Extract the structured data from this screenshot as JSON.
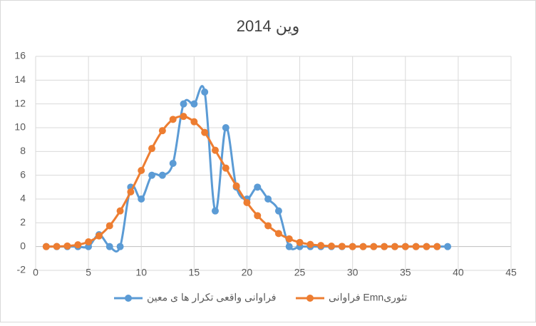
{
  "chart_data": {
    "type": "scatter",
    "title": "وین 2014",
    "x": [
      1,
      2,
      3,
      4,
      5,
      6,
      7,
      8,
      9,
      10,
      11,
      12,
      13,
      14,
      15,
      16,
      17,
      18,
      19,
      20,
      21,
      22,
      23,
      24,
      25,
      26,
      27,
      28,
      29,
      30,
      31,
      32,
      33,
      34,
      35,
      36,
      37,
      38,
      39
    ],
    "series": [
      {
        "name": "فراوانی واقعی تکرار ها ی معین",
        "color": "#5b9bd5",
        "values": [
          0,
          0,
          0,
          0,
          0,
          1,
          0,
          0,
          5,
          4,
          6,
          6,
          7,
          12,
          12,
          13,
          3,
          10,
          5,
          4,
          5,
          4,
          3,
          0,
          0,
          0,
          0,
          0,
          0,
          0,
          0,
          0,
          0,
          0,
          0,
          0,
          0,
          0,
          0
        ]
      },
      {
        "name": "فراوانی Emnتئوری",
        "color": "#ed7d31",
        "values": [
          0,
          0.01,
          0.05,
          0.15,
          0.4,
          0.9,
          1.75,
          3,
          4.6,
          6.4,
          8.25,
          9.75,
          10.7,
          10.95,
          10.5,
          9.6,
          8.1,
          6.6,
          5.1,
          3.7,
          2.6,
          1.75,
          1.1,
          0.65,
          0.35,
          0.18,
          0.09,
          0.04,
          0.02,
          0,
          0,
          0,
          0,
          0,
          0,
          0,
          0,
          0,
          null
        ]
      }
    ],
    "xlim": [
      0,
      45
    ],
    "xticks": [
      0,
      5,
      10,
      15,
      20,
      25,
      30,
      35,
      40,
      45
    ],
    "ylim": [
      -2,
      16
    ],
    "yticks": [
      -2,
      0,
      2,
      4,
      6,
      8,
      10,
      12,
      14,
      16
    ],
    "grid": true,
    "legend": "bottom"
  }
}
